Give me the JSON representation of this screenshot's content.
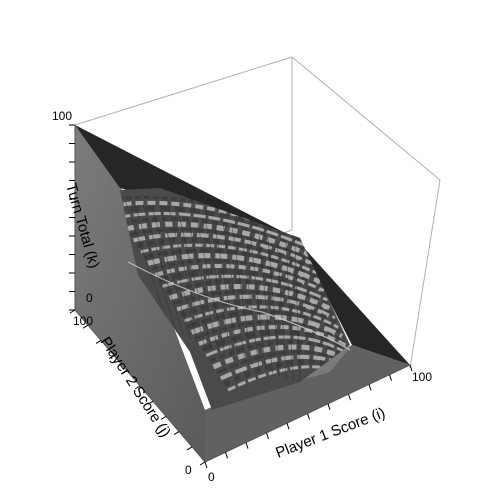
{
  "chart_data": {
    "type": "surface3d",
    "title": "",
    "axes": {
      "x": {
        "label": "Player 1 Score (i)",
        "range": [
          0,
          100
        ],
        "tick_labels": [
          "0",
          "100"
        ]
      },
      "y": {
        "label": "Player 2 Score (j)",
        "range": [
          0,
          100
        ],
        "tick_labels": [
          "0",
          "100"
        ]
      },
      "z": {
        "label": "Turn Total (k)",
        "range": [
          0,
          100
        ],
        "tick_labels": [
          "0",
          "100"
        ]
      }
    },
    "grid": false,
    "legend": "none",
    "colors": {
      "bounding_box": "#b0b0b0",
      "top_face": "#262626",
      "front_face": "#5e5e5e",
      "left_face": "#707070",
      "base_face": "#7a7a7a",
      "surface_dark": "#3c3c3c",
      "surface_light": "#c8c8c8"
    }
  }
}
